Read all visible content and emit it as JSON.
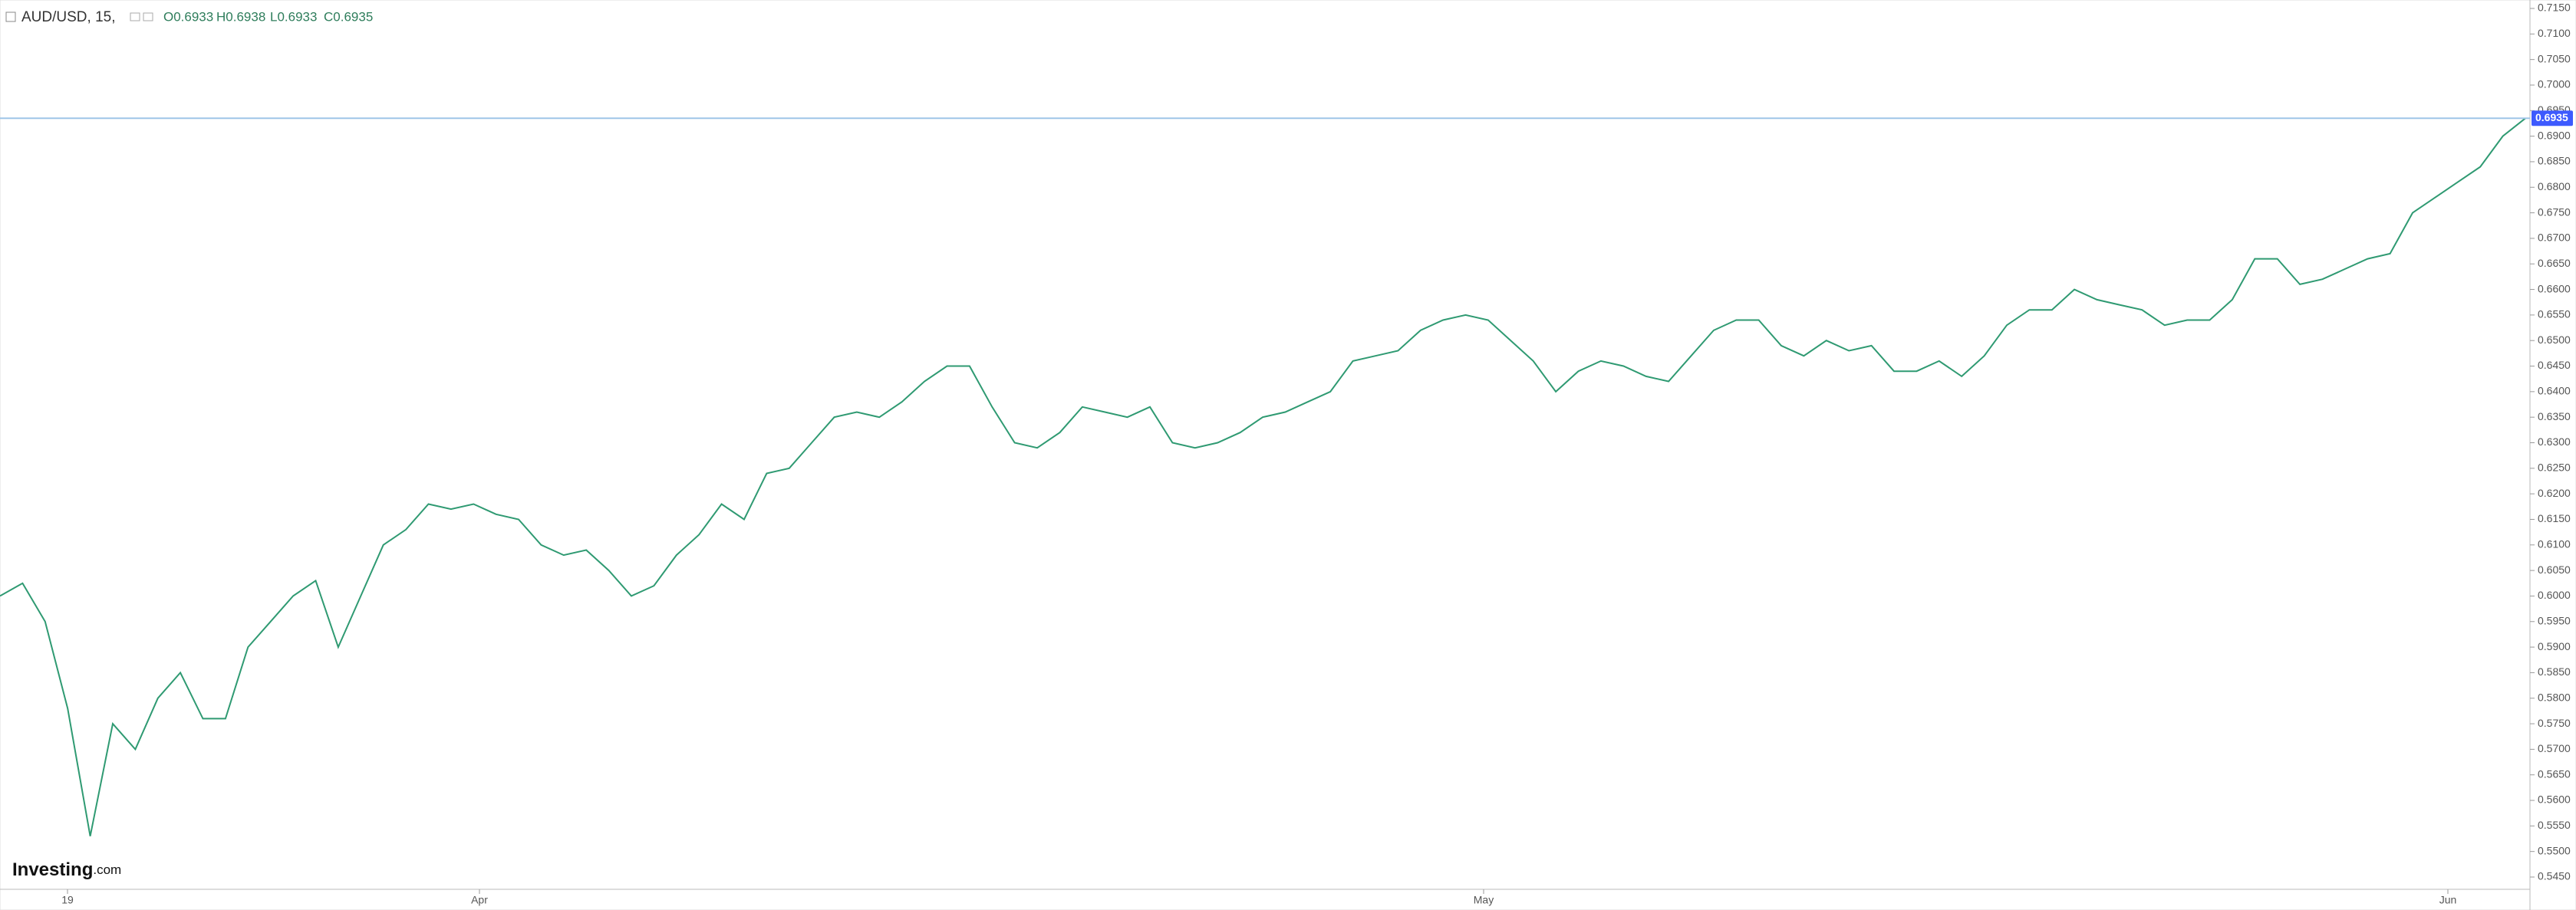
{
  "chart_data": {
    "type": "line",
    "title": "AUD/USD, 15,",
    "ohlc": [
      "O0.6933",
      "H0.6938",
      "L0.6933",
      "C0.6935"
    ],
    "logo": [
      "Investing",
      ".com"
    ],
    "color": "#2f9a72",
    "values": [
      0.6,
      0.6025,
      0.595,
      0.578,
      0.553,
      0.575,
      0.57,
      0.58,
      0.585,
      0.576,
      0.576,
      0.59,
      0.595,
      0.6,
      0.603,
      0.59,
      0.6,
      0.61,
      0.613,
      0.618,
      0.617,
      0.618,
      0.616,
      0.615,
      0.61,
      0.608,
      0.609,
      0.605,
      0.6,
      0.602,
      0.608,
      0.612,
      0.618,
      0.615,
      0.624,
      0.625,
      0.63,
      0.635,
      0.636,
      0.635,
      0.638,
      0.642,
      0.645,
      0.645,
      0.637,
      0.63,
      0.629,
      0.632,
      0.637,
      0.636,
      0.635,
      0.637,
      0.63,
      0.629,
      0.63,
      0.632,
      0.635,
      0.636,
      0.638,
      0.64,
      0.646,
      0.647,
      0.648,
      0.652,
      0.654,
      0.655,
      0.654,
      0.65,
      0.646,
      0.64,
      0.644,
      0.646,
      0.645,
      0.643,
      0.642,
      0.647,
      0.652,
      0.654,
      0.654,
      0.649,
      0.647,
      0.65,
      0.648,
      0.649,
      0.644,
      0.644,
      0.646,
      0.643,
      0.647,
      0.653,
      0.656,
      0.656,
      0.66,
      0.658,
      0.657,
      0.656,
      0.653,
      0.654,
      0.654,
      0.658,
      0.666,
      0.666,
      0.661,
      0.662,
      0.664,
      0.666,
      0.667,
      0.675,
      0.678,
      0.681,
      0.684,
      0.69,
      0.6935
    ],
    "last_price": {
      "value": 0.6935,
      "label": "0.6935"
    },
    "xlabels": [
      "19",
      "Apr",
      "May",
      "Jun"
    ],
    "ylim": [
      0.545,
      0.715
    ],
    "yticks": [
      {
        "value": 0.545,
        "label": "0.5450"
      },
      {
        "value": 0.55,
        "label": "0.5500"
      },
      {
        "value": 0.555,
        "label": "0.5550"
      },
      {
        "value": 0.56,
        "label": "0.5600"
      },
      {
        "value": 0.565,
        "label": "0.5650"
      },
      {
        "value": 0.57,
        "label": "0.5700"
      },
      {
        "value": 0.575,
        "label": "0.5750"
      },
      {
        "value": 0.58,
        "label": "0.5800"
      },
      {
        "value": 0.585,
        "label": "0.5850"
      },
      {
        "value": 0.59,
        "label": "0.5900"
      },
      {
        "value": 0.595,
        "label": "0.5950"
      },
      {
        "value": 0.6,
        "label": "0.6000"
      },
      {
        "value": 0.605,
        "label": "0.6050"
      },
      {
        "value": 0.61,
        "label": "0.6100"
      },
      {
        "value": 0.615,
        "label": "0.6150"
      },
      {
        "value": 0.62,
        "label": "0.6200"
      },
      {
        "value": 0.625,
        "label": "0.6250"
      },
      {
        "value": 0.63,
        "label": "0.6300"
      },
      {
        "value": 0.635,
        "label": "0.6350"
      },
      {
        "value": 0.64,
        "label": "0.6400"
      },
      {
        "value": 0.645,
        "label": "0.6450"
      },
      {
        "value": 0.65,
        "label": "0.6500"
      },
      {
        "value": 0.655,
        "label": "0.6550"
      },
      {
        "value": 0.66,
        "label": "0.6600"
      },
      {
        "value": 0.665,
        "label": "0.6650"
      },
      {
        "value": 0.67,
        "label": "0.6700"
      },
      {
        "value": 0.675,
        "label": "0.6750"
      },
      {
        "value": 0.68,
        "label": "0.6800"
      },
      {
        "value": 0.685,
        "label": "0.6850"
      },
      {
        "value": 0.69,
        "label": "0.6900"
      },
      {
        "value": 0.695,
        "label": "0.6950"
      },
      {
        "value": 0.7,
        "label": "0.7000"
      },
      {
        "value": 0.705,
        "label": "0.7050"
      },
      {
        "value": 0.71,
        "label": "0.7100"
      },
      {
        "value": 0.715,
        "label": "0.7150"
      }
    ]
  }
}
